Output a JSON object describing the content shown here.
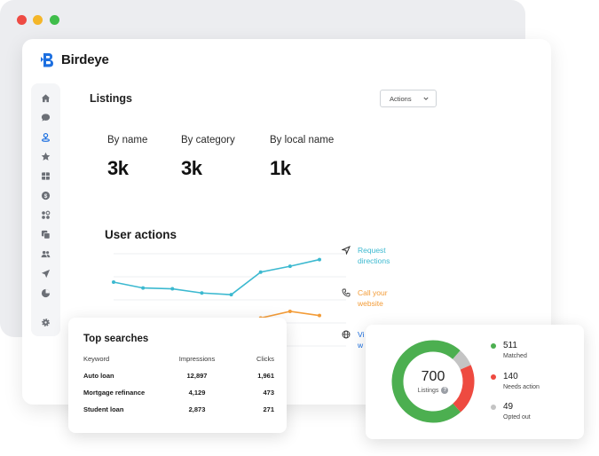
{
  "colors": {
    "teal": "#3cb9d0",
    "orange": "#f39c38",
    "green": "#4caf50",
    "red": "#ee4a40",
    "gray": "#c4c4c4",
    "brand": "#1c6fe0"
  },
  "brand": {
    "name": "Birdeye"
  },
  "sidebar": {
    "items": [
      {
        "icon": "home-icon"
      },
      {
        "icon": "chat-icon"
      },
      {
        "icon": "location-pin-icon"
      },
      {
        "icon": "star-icon"
      },
      {
        "icon": "gift-icon"
      },
      {
        "icon": "dollar-icon"
      },
      {
        "icon": "apps-icon"
      },
      {
        "icon": "copy-icon"
      },
      {
        "icon": "people-icon"
      },
      {
        "icon": "send-icon"
      },
      {
        "icon": "pie-chart-icon"
      },
      {
        "icon": "settings-icon"
      }
    ]
  },
  "header": {
    "title": "Listings",
    "actions_label": "Actions"
  },
  "stats": [
    {
      "label": "By name",
      "value": "3k"
    },
    {
      "label": "By category",
      "value": "3k"
    },
    {
      "label": "By local name",
      "value": "1k"
    }
  ],
  "user_actions": {
    "title": "User actions",
    "legend": [
      {
        "label_line1": "Request",
        "label_line2": "directions",
        "icon": "navigation-arrow-icon"
      },
      {
        "label_line1": "Call your",
        "label_line2": "website",
        "icon": "phone-icon"
      },
      {
        "label_line1": "Vi",
        "label_line2": "w",
        "icon": "globe-icon"
      }
    ]
  },
  "chart_data": {
    "type": "line",
    "title": "User actions",
    "series": [
      {
        "name": "Request directions",
        "values": [
          0.86,
          0.79,
          0.78,
          0.73,
          0.71,
          0.98,
          1.05,
          1.13
        ]
      },
      {
        "name": "Call your website",
        "values": [
          null,
          null,
          null,
          null,
          null,
          0.43,
          0.51,
          0.46
        ]
      }
    ]
  },
  "top_searches": {
    "title": "Top searches",
    "columns": [
      "Keyword",
      "Impressions",
      "Clicks"
    ],
    "rows": [
      {
        "keyword": "Auto loan",
        "impressions": "12,897",
        "clicks": "1,961"
      },
      {
        "keyword": "Mortgage refinance",
        "impressions": "4,129",
        "clicks": "473"
      },
      {
        "keyword": "Student loan",
        "impressions": "2,873",
        "clicks": "271"
      }
    ]
  },
  "listings_summary": {
    "total": "700",
    "total_label": "Listings",
    "items": [
      {
        "value": "511",
        "label": "Matched",
        "color": "#4caf50"
      },
      {
        "value": "140",
        "label": "Needs action",
        "color": "#ee4a40"
      },
      {
        "value": "49",
        "label": "Opted out",
        "color": "#c4c4c4"
      }
    ]
  }
}
